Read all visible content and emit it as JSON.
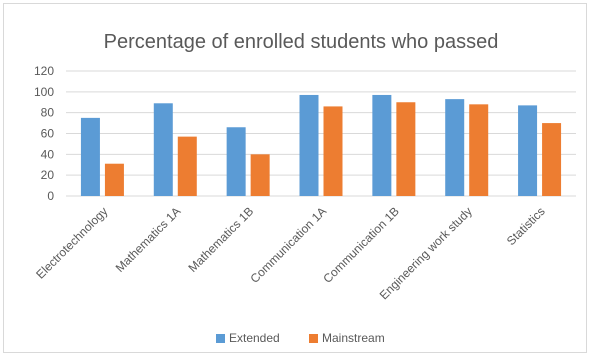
{
  "chart_data": {
    "type": "bar",
    "title": "Percentage of enrolled students who passed",
    "xlabel": "",
    "ylabel": "",
    "categories": [
      "Electrotechnology",
      "Mathematics 1A",
      "Mathematics 1B",
      "Communication 1A",
      "Communication 1B",
      "Engineering work study",
      "Statistics"
    ],
    "series": [
      {
        "name": "Extended",
        "color": "#5b9bd5",
        "values": [
          75,
          89,
          66,
          97,
          97,
          93,
          87
        ]
      },
      {
        "name": "Mainstream",
        "color": "#ed7d31",
        "values": [
          31,
          57,
          40,
          86,
          90,
          88,
          70
        ]
      }
    ],
    "ylim": [
      0,
      120
    ],
    "yticks": [
      0,
      20,
      40,
      60,
      80,
      100,
      120
    ],
    "grid": true,
    "legend": "bottom"
  }
}
